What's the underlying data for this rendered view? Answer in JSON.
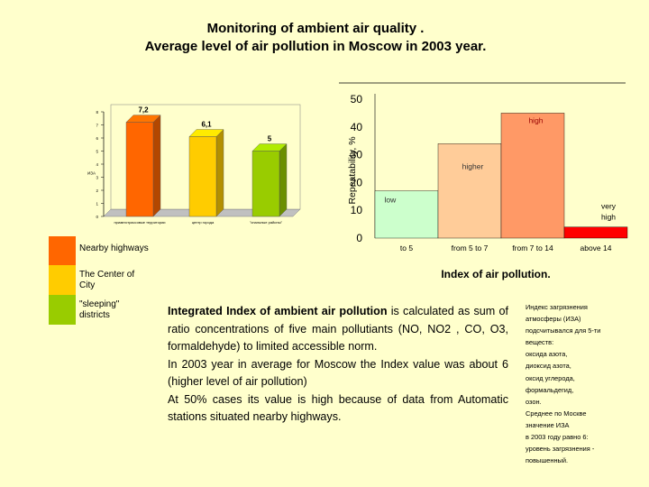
{
  "title": {
    "line1": "Monitoring of ambient air quality .",
    "line2": "Average level of air pollution in Moscow in 2003 year."
  },
  "legend": [
    {
      "label": "Nearby highways",
      "color": "#FF6600"
    },
    {
      "label": "The Center of City",
      "color": "#FFCC00"
    },
    {
      "label": "\"sleeping\" districts",
      "color": "#99CC00"
    }
  ],
  "body": {
    "p1_bold": "Integrated Index of ambient air pollution",
    "p1_rest": " is calculated as sum of ratio concentrations of five main pollutiants (NO, NO2 , CO, O3, formaldehyde) to limited accessible norm.",
    "p2": "In 2003 year in average for Moscow the Index value was about 6 (higher level of air pollution)",
    "p3": "At 50% cases its value is high because of data from Automatic stations situated nearby highways."
  },
  "russian_note": [
    "Индекс загрязнения атмосферы (ИЗА)",
    "подсчитывался для 5-ти веществ:",
    "оксида азота,",
    "диоксид азота,",
    "оксид углерода,",
    "формальдегид,",
    "озон.",
    "Среднее по Москве значение ИЗА",
    "в 2003 году равно 6:",
    "уровень загрязнения -",
    "повышенный."
  ],
  "chart_data": [
    {
      "type": "bar",
      "categories": [
        "приавтотрассовые территории",
        "центр города",
        "\"спальные районы\""
      ],
      "values": [
        7.2,
        6.1,
        5
      ],
      "data_labels": [
        "7,2",
        "6,1",
        "5"
      ],
      "colors": [
        "#FF6600",
        "#FFCC00",
        "#99CC00"
      ],
      "yticks": [
        "0",
        "1",
        "2",
        "3",
        "4",
        "5",
        "6",
        "7",
        "8"
      ],
      "ylim": [
        0,
        8
      ],
      "ylabel": "ИЗА",
      "grid": false,
      "style": "3d"
    },
    {
      "type": "bar",
      "categories": [
        "to 5",
        "from 5 to 7",
        "from 7 to 14",
        "above 14"
      ],
      "values": [
        17,
        34,
        45,
        4
      ],
      "band_labels": [
        "low",
        "higher",
        "high",
        "very high"
      ],
      "colors": [
        "#CCFFCC",
        "#FFCC99",
        "#FF9966",
        "#FF0000"
      ],
      "yticks": [
        "0",
        "10",
        "20",
        "30",
        "40",
        "50"
      ],
      "ylim": [
        0,
        50
      ],
      "ylabel": "Repeatability, %",
      "xlabel": "Index of air pollution.",
      "grid": false
    }
  ]
}
